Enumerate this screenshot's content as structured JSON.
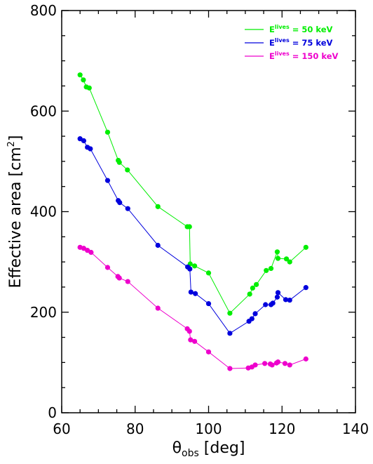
{
  "chart_data": {
    "type": "line",
    "xlabel": {
      "main": "θ",
      "sub": "obs",
      "rest": " [deg]"
    },
    "ylabel": {
      "main": "Effective area [cm",
      "sup": "2",
      "rest": "]"
    },
    "xlim": [
      60,
      140
    ],
    "ylim": [
      0,
      800
    ],
    "x_ticks": [
      60,
      80,
      100,
      120,
      140
    ],
    "y_ticks": [
      0,
      200,
      400,
      600,
      800
    ],
    "grid": false,
    "legend_position": "top-right",
    "series": [
      {
        "label_main": "E",
        "label_sup": "lives",
        "label_rest": " = 50 keV",
        "color": "#00ee00",
        "x": [
          65.0,
          65.9,
          66.7,
          67.5,
          72.5,
          75.4,
          75.7,
          77.9,
          86.2,
          94.2,
          94.8,
          95.0,
          96.2,
          100.0,
          105.8,
          111.2,
          112.0,
          113.0,
          115.7,
          117.0,
          118.7,
          118.9,
          121.2,
          122.1,
          126.5
        ],
        "y": [
          672,
          662,
          648,
          646,
          558,
          502,
          498,
          483,
          410,
          370,
          370,
          296,
          292,
          278,
          198,
          236,
          248,
          255,
          283,
          287,
          320,
          307,
          306,
          300,
          329
        ]
      },
      {
        "label_main": "E",
        "label_sup": "lives",
        "label_rest": " = 75 keV",
        "color": "#0000dd",
        "x": [
          65.0,
          66.0,
          67.0,
          67.8,
          72.5,
          75.4,
          75.8,
          78.0,
          86.2,
          94.3,
          94.9,
          95.2,
          96.4,
          100.0,
          105.8,
          111.0,
          111.8,
          112.7,
          115.5,
          117.0,
          117.5,
          118.7,
          118.9,
          121.0,
          122.1,
          126.5
        ],
        "y": [
          545,
          541,
          528,
          525,
          462,
          422,
          418,
          406,
          333,
          290,
          286,
          240,
          237,
          217,
          158,
          182,
          187,
          197,
          215,
          215,
          218,
          230,
          239,
          225,
          224,
          249
        ]
      },
      {
        "label_main": "E",
        "label_sup": "lives",
        "label_rest": " = 150 keV",
        "color": "#ee00cc",
        "x": [
          65.0,
          66.0,
          67.0,
          68.0,
          72.5,
          75.3,
          75.7,
          78.0,
          86.2,
          94.2,
          94.8,
          95.1,
          96.2,
          100.0,
          105.8,
          110.8,
          111.8,
          112.7,
          115.3,
          116.8,
          117.3,
          118.5,
          118.9,
          120.8,
          122.1,
          126.5
        ],
        "y": [
          329,
          327,
          323,
          319,
          289,
          271,
          268,
          261,
          208,
          167,
          162,
          145,
          142,
          121,
          88,
          89,
          91,
          95,
          98,
          97,
          95,
          99,
          101,
          98,
          95,
          107
        ]
      }
    ]
  }
}
